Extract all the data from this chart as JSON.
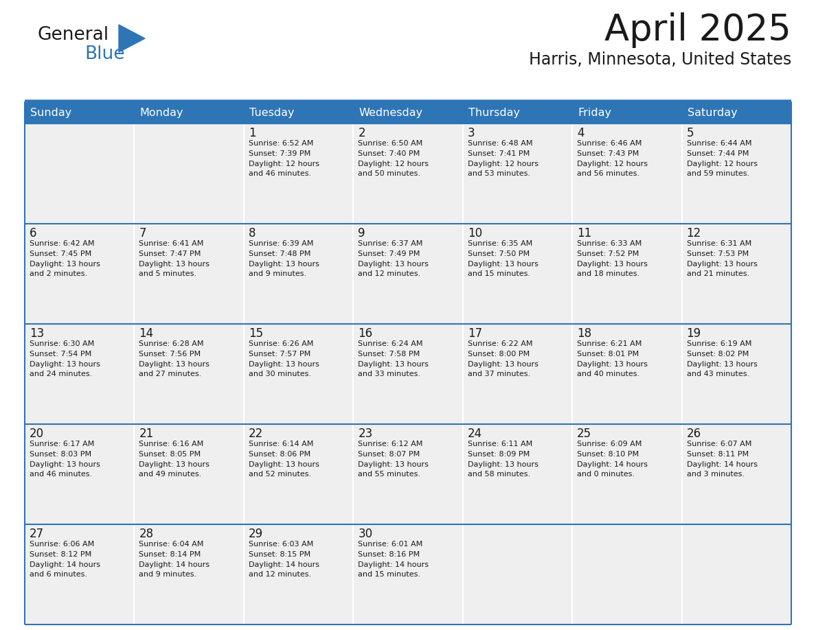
{
  "title": "April 2025",
  "subtitle": "Harris, Minnesota, United States",
  "header_bg_color": "#2E75B6",
  "header_text_color": "#FFFFFF",
  "cell_bg_color": "#EFEFEF",
  "day_number_color": "#1a1a1a",
  "cell_text_color": "#1a1a1a",
  "border_color": "#2E75B6",
  "row_sep_color": "#2E75B6",
  "days_of_week": [
    "Sunday",
    "Monday",
    "Tuesday",
    "Wednesday",
    "Thursday",
    "Friday",
    "Saturday"
  ],
  "weeks": [
    [
      {
        "day": "",
        "info": ""
      },
      {
        "day": "",
        "info": ""
      },
      {
        "day": "1",
        "info": "Sunrise: 6:52 AM\nSunset: 7:39 PM\nDaylight: 12 hours\nand 46 minutes."
      },
      {
        "day": "2",
        "info": "Sunrise: 6:50 AM\nSunset: 7:40 PM\nDaylight: 12 hours\nand 50 minutes."
      },
      {
        "day": "3",
        "info": "Sunrise: 6:48 AM\nSunset: 7:41 PM\nDaylight: 12 hours\nand 53 minutes."
      },
      {
        "day": "4",
        "info": "Sunrise: 6:46 AM\nSunset: 7:43 PM\nDaylight: 12 hours\nand 56 minutes."
      },
      {
        "day": "5",
        "info": "Sunrise: 6:44 AM\nSunset: 7:44 PM\nDaylight: 12 hours\nand 59 minutes."
      }
    ],
    [
      {
        "day": "6",
        "info": "Sunrise: 6:42 AM\nSunset: 7:45 PM\nDaylight: 13 hours\nand 2 minutes."
      },
      {
        "day": "7",
        "info": "Sunrise: 6:41 AM\nSunset: 7:47 PM\nDaylight: 13 hours\nand 5 minutes."
      },
      {
        "day": "8",
        "info": "Sunrise: 6:39 AM\nSunset: 7:48 PM\nDaylight: 13 hours\nand 9 minutes."
      },
      {
        "day": "9",
        "info": "Sunrise: 6:37 AM\nSunset: 7:49 PM\nDaylight: 13 hours\nand 12 minutes."
      },
      {
        "day": "10",
        "info": "Sunrise: 6:35 AM\nSunset: 7:50 PM\nDaylight: 13 hours\nand 15 minutes."
      },
      {
        "day": "11",
        "info": "Sunrise: 6:33 AM\nSunset: 7:52 PM\nDaylight: 13 hours\nand 18 minutes."
      },
      {
        "day": "12",
        "info": "Sunrise: 6:31 AM\nSunset: 7:53 PM\nDaylight: 13 hours\nand 21 minutes."
      }
    ],
    [
      {
        "day": "13",
        "info": "Sunrise: 6:30 AM\nSunset: 7:54 PM\nDaylight: 13 hours\nand 24 minutes."
      },
      {
        "day": "14",
        "info": "Sunrise: 6:28 AM\nSunset: 7:56 PM\nDaylight: 13 hours\nand 27 minutes."
      },
      {
        "day": "15",
        "info": "Sunrise: 6:26 AM\nSunset: 7:57 PM\nDaylight: 13 hours\nand 30 minutes."
      },
      {
        "day": "16",
        "info": "Sunrise: 6:24 AM\nSunset: 7:58 PM\nDaylight: 13 hours\nand 33 minutes."
      },
      {
        "day": "17",
        "info": "Sunrise: 6:22 AM\nSunset: 8:00 PM\nDaylight: 13 hours\nand 37 minutes."
      },
      {
        "day": "18",
        "info": "Sunrise: 6:21 AM\nSunset: 8:01 PM\nDaylight: 13 hours\nand 40 minutes."
      },
      {
        "day": "19",
        "info": "Sunrise: 6:19 AM\nSunset: 8:02 PM\nDaylight: 13 hours\nand 43 minutes."
      }
    ],
    [
      {
        "day": "20",
        "info": "Sunrise: 6:17 AM\nSunset: 8:03 PM\nDaylight: 13 hours\nand 46 minutes."
      },
      {
        "day": "21",
        "info": "Sunrise: 6:16 AM\nSunset: 8:05 PM\nDaylight: 13 hours\nand 49 minutes."
      },
      {
        "day": "22",
        "info": "Sunrise: 6:14 AM\nSunset: 8:06 PM\nDaylight: 13 hours\nand 52 minutes."
      },
      {
        "day": "23",
        "info": "Sunrise: 6:12 AM\nSunset: 8:07 PM\nDaylight: 13 hours\nand 55 minutes."
      },
      {
        "day": "24",
        "info": "Sunrise: 6:11 AM\nSunset: 8:09 PM\nDaylight: 13 hours\nand 58 minutes."
      },
      {
        "day": "25",
        "info": "Sunrise: 6:09 AM\nSunset: 8:10 PM\nDaylight: 14 hours\nand 0 minutes."
      },
      {
        "day": "26",
        "info": "Sunrise: 6:07 AM\nSunset: 8:11 PM\nDaylight: 14 hours\nand 3 minutes."
      }
    ],
    [
      {
        "day": "27",
        "info": "Sunrise: 6:06 AM\nSunset: 8:12 PM\nDaylight: 14 hours\nand 6 minutes."
      },
      {
        "day": "28",
        "info": "Sunrise: 6:04 AM\nSunset: 8:14 PM\nDaylight: 14 hours\nand 9 minutes."
      },
      {
        "day": "29",
        "info": "Sunrise: 6:03 AM\nSunset: 8:15 PM\nDaylight: 14 hours\nand 12 minutes."
      },
      {
        "day": "30",
        "info": "Sunrise: 6:01 AM\nSunset: 8:16 PM\nDaylight: 14 hours\nand 15 minutes."
      },
      {
        "day": "",
        "info": ""
      },
      {
        "day": "",
        "info": ""
      },
      {
        "day": "",
        "info": ""
      }
    ]
  ],
  "logo_color_general": "#1a1a1a",
  "logo_color_blue": "#2E75B6",
  "figsize": [
    11.88,
    9.18
  ],
  "dpi": 100
}
